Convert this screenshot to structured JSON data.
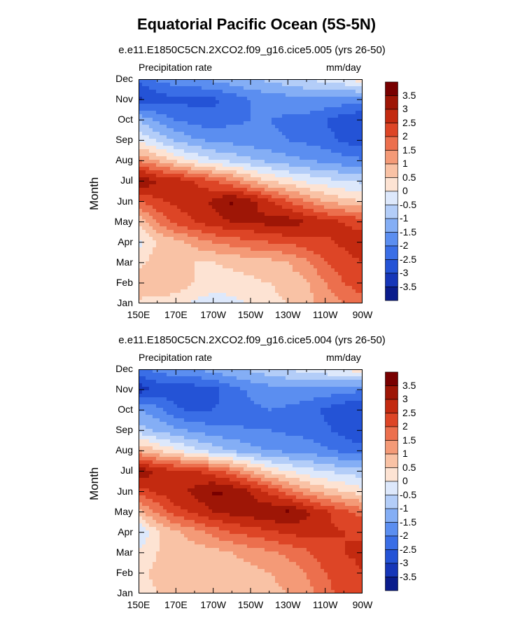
{
  "figure": {
    "title": "Equatorial Pacific Ocean (5S-5N)"
  },
  "colors": {
    "levels": [
      "#0a1c8c",
      "#1636b8",
      "#2453d6",
      "#3a6ee6",
      "#5b8ef0",
      "#84aef5",
      "#b3cdf8",
      "#dde8fb",
      "#fde3d3",
      "#f9c2a5",
      "#f49a77",
      "#ec6f4d",
      "#dd4526",
      "#c32a10",
      "#9e1606",
      "#780000"
    ]
  },
  "chart_data": [
    {
      "type": "heatmap",
      "title": "e.e11.E1850C5CN.2XCO2.f09_g16.cice5.005 (yrs 26-50)",
      "variable": "Precipitation rate",
      "units": "mm/day",
      "xlabel": "",
      "ylabel": "Month",
      "x_ticks": [
        "150E",
        "170E",
        "170W",
        "150W",
        "130W",
        "110W",
        "90W"
      ],
      "y_ticks": [
        "Jan",
        "Feb",
        "Mar",
        "Apr",
        "May",
        "Jun",
        "Jul",
        "Aug",
        "Sep",
        "Oct",
        "Nov",
        "Dec"
      ],
      "colorbar_levels": [
        "3.5",
        "3",
        "2.5",
        "2",
        "1.5",
        "1",
        "0.5",
        "0",
        "-0.5",
        "-1",
        "-1.5",
        "-2",
        "-2.5",
        "-3",
        "-3.5"
      ],
      "x": [
        150,
        160,
        170,
        180,
        190,
        200,
        210,
        220,
        230,
        240,
        250,
        260,
        270
      ],
      "y": [
        "Jan",
        "Feb",
        "Mar",
        "Apr",
        "May",
        "Jun",
        "Jul",
        "Aug",
        "Sep",
        "Oct",
        "Nov",
        "Dec"
      ],
      "z": [
        [
          0.4,
          0.3,
          0.2,
          -0.1,
          -0.3,
          -0.2,
          0.1,
          0.3,
          0.5,
          0.8,
          1.2,
          1.5,
          1.8
        ],
        [
          0.8,
          1.0,
          0.8,
          0.5,
          0.3,
          0.3,
          0.4,
          0.5,
          0.7,
          0.9,
          1.5,
          2.0,
          2.3
        ],
        [
          0.3,
          0.8,
          0.6,
          0.5,
          0.5,
          0.6,
          0.7,
          0.8,
          1.0,
          1.4,
          2.0,
          2.3,
          2.5
        ],
        [
          -0.2,
          0.5,
          0.8,
          1.2,
          1.5,
          1.7,
          1.9,
          2.0,
          2.1,
          2.3,
          2.4,
          2.6,
          2.8
        ],
        [
          0.6,
          1.5,
          2.2,
          2.5,
          2.8,
          3.0,
          3.0,
          3.2,
          3.3,
          3.0,
          2.7,
          2.5,
          2.3
        ],
        [
          2.0,
          2.4,
          2.6,
          2.8,
          3.1,
          3.6,
          3.2,
          2.6,
          2.0,
          1.5,
          1.0,
          0.7,
          0.5
        ],
        [
          3.6,
          3.0,
          2.8,
          2.5,
          2.0,
          1.6,
          1.0,
          0.5,
          0.2,
          -0.1,
          -0.3,
          -0.5,
          -0.6
        ],
        [
          1.5,
          1.0,
          0.4,
          0.0,
          -0.4,
          -0.6,
          -0.9,
          -1.1,
          -1.3,
          -1.5,
          -1.6,
          -1.8,
          -1.9
        ],
        [
          0.0,
          -0.6,
          -1.1,
          -1.4,
          -1.6,
          -1.7,
          -1.8,
          -1.9,
          -2.0,
          -2.1,
          -2.3,
          -2.6,
          -2.8
        ],
        [
          -1.0,
          -1.6,
          -2.0,
          -2.2,
          -2.3,
          -2.1,
          -2.0,
          -2.0,
          -2.1,
          -2.2,
          -2.5,
          -2.8,
          -3.0
        ],
        [
          -3.1,
          -2.8,
          -2.6,
          -2.7,
          -2.6,
          -2.3,
          -2.0,
          -1.8,
          -1.7,
          -1.6,
          -1.6,
          -1.7,
          -1.8
        ],
        [
          -2.4,
          -1.9,
          -1.7,
          -1.6,
          -1.4,
          -1.2,
          -1.0,
          -0.9,
          -0.7,
          -0.5,
          -0.3,
          -0.1,
          0.3
        ]
      ]
    },
    {
      "type": "heatmap",
      "title": "e.e11.E1850C5CN.2XCO2.f09_g16.cice5.004 (yrs 26-50)",
      "variable": "Precipitation rate",
      "units": "mm/day",
      "xlabel": "",
      "ylabel": "Month",
      "x_ticks": [
        "150E",
        "170E",
        "170W",
        "150W",
        "130W",
        "110W",
        "90W"
      ],
      "y_ticks": [
        "Jan",
        "Feb",
        "Mar",
        "Apr",
        "May",
        "Jun",
        "Jul",
        "Aug",
        "Sep",
        "Oct",
        "Nov",
        "Dec"
      ],
      "colorbar_levels": [
        "3.5",
        "3",
        "2.5",
        "2",
        "1.5",
        "1",
        "0.5",
        "0",
        "-0.5",
        "-1",
        "-1.5",
        "-2",
        "-2.5",
        "-3",
        "-3.5"
      ],
      "x": [
        150,
        160,
        170,
        180,
        190,
        200,
        210,
        220,
        230,
        240,
        250,
        260,
        270
      ],
      "y": [
        "Jan",
        "Feb",
        "Mar",
        "Apr",
        "May",
        "Jun",
        "Jul",
        "Aug",
        "Sep",
        "Oct",
        "Nov",
        "Dec"
      ],
      "z": [
        [
          0.3,
          0.5,
          0.6,
          0.6,
          0.6,
          0.6,
          0.7,
          0.8,
          1.0,
          1.3,
          1.8,
          2.2,
          2.4
        ],
        [
          0.4,
          0.6,
          0.6,
          0.6,
          0.6,
          0.7,
          0.8,
          1.0,
          1.2,
          1.5,
          2.0,
          2.3,
          2.5
        ],
        [
          0.2,
          0.5,
          0.6,
          0.7,
          0.8,
          1.0,
          1.2,
          1.4,
          1.6,
          1.9,
          2.3,
          2.5,
          2.6
        ],
        [
          -0.6,
          0.4,
          0.9,
          1.3,
          1.7,
          2.0,
          2.2,
          2.4,
          2.6,
          2.7,
          2.6,
          2.5,
          2.4
        ],
        [
          0.8,
          1.6,
          2.3,
          2.6,
          3.0,
          3.2,
          3.3,
          3.4,
          3.6,
          3.1,
          2.6,
          2.2,
          1.8
        ],
        [
          2.2,
          2.6,
          2.9,
          3.1,
          3.6,
          3.5,
          3.0,
          2.4,
          1.8,
          1.2,
          0.8,
          0.5,
          0.2
        ],
        [
          3.6,
          2.8,
          2.7,
          2.6,
          2.2,
          1.7,
          1.0,
          0.4,
          0.0,
          -0.3,
          -0.5,
          -0.7,
          -0.8
        ],
        [
          1.0,
          0.6,
          0.1,
          -0.3,
          -0.7,
          -1.0,
          -1.3,
          -1.5,
          -1.6,
          -1.7,
          -1.9,
          -2.1,
          -2.3
        ],
        [
          -0.7,
          -1.1,
          -1.4,
          -1.6,
          -1.8,
          -1.9,
          -2.0,
          -2.0,
          -2.1,
          -2.2,
          -2.4,
          -2.7,
          -3.0
        ],
        [
          -1.5,
          -1.8,
          -2.4,
          -2.6,
          -2.5,
          -2.3,
          -2.1,
          -2.0,
          -2.1,
          -2.3,
          -2.6,
          -2.9,
          -3.0
        ],
        [
          -3.3,
          -2.9,
          -2.8,
          -2.8,
          -2.7,
          -2.2,
          -1.9,
          -1.7,
          -1.6,
          -1.6,
          -1.7,
          -1.8,
          -1.9
        ],
        [
          -2.2,
          -1.8,
          -1.6,
          -1.5,
          -1.3,
          -1.1,
          -0.9,
          -0.7,
          -0.5,
          -0.3,
          -0.1,
          0.1,
          0.3
        ]
      ]
    }
  ]
}
